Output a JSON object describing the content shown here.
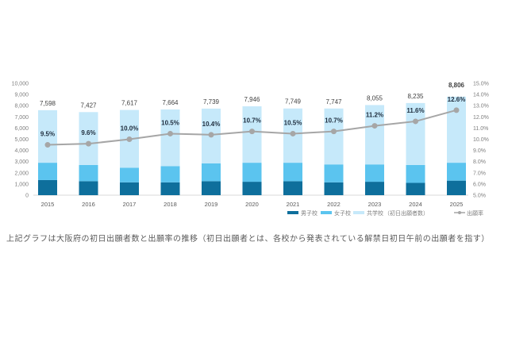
{
  "chart_data": {
    "type": "bar+line",
    "title": "",
    "categories": [
      "2015",
      "2016",
      "2017",
      "2018",
      "2019",
      "2020",
      "2021",
      "2022",
      "2023",
      "2024",
      "2025"
    ],
    "series": [
      {
        "name": "男子校",
        "type": "stacked-bar",
        "color": "#0e6f9c",
        "values": [
          1350,
          1250,
          1150,
          1150,
          1250,
          1200,
          1250,
          1150,
          1200,
          1100,
          1300
        ]
      },
      {
        "name": "女子校",
        "type": "stacked-bar",
        "color": "#5bc4ef",
        "values": [
          1550,
          1450,
          1300,
          1450,
          1600,
          1700,
          1650,
          1600,
          1550,
          1600,
          1600
        ]
      },
      {
        "name": "共学校",
        "type": "stacked-bar",
        "color": "#c6e9fa",
        "values": [
          4698,
          4727,
          5167,
          5064,
          4889,
          5046,
          4849,
          4997,
          5305,
          5535,
          5906
        ]
      },
      {
        "name": "出願率",
        "type": "line",
        "axis": "right",
        "color": "#a6a6a6",
        "values": [
          9.5,
          9.6,
          10.0,
          10.5,
          10.4,
          10.7,
          10.5,
          10.7,
          11.2,
          11.6,
          12.6
        ]
      }
    ],
    "totals": [
      7598,
      7427,
      7617,
      7664,
      7739,
      7946,
      7749,
      7747,
      8055,
      8235,
      8806
    ],
    "total_labels": [
      "7,598",
      "7,427",
      "7,617",
      "7,664",
      "7,739",
      "7,946",
      "7,749",
      "7,747",
      "8,055",
      "8,235",
      "8,806"
    ],
    "rate_labels": [
      "9.5%",
      "9.6%",
      "10.0%",
      "10.5%",
      "10.4%",
      "10.7%",
      "10.5%",
      "10.7%",
      "11.2%",
      "11.6%",
      "12.6%"
    ],
    "ylabel": "",
    "xlabel": "",
    "ylim": [
      0,
      10000
    ],
    "y_ticks": [
      "0",
      "1,000",
      "2,000",
      "3,000",
      "4,000",
      "5,000",
      "6,000",
      "7,000",
      "8,000",
      "9,000",
      "10,000"
    ],
    "y2lim": [
      5.0,
      15.0
    ],
    "y2_ticks": [
      "5.0%",
      "6.0%",
      "7.0%",
      "8.0%",
      "9.0%",
      "10.0%",
      "11.0%",
      "12.0%",
      "13.0%",
      "14.0%",
      "15.0%"
    ],
    "legend": [
      "男子校",
      "女子校",
      "共学校",
      "（初日出願者数）",
      "出願率"
    ],
    "legend_position": "bottom-right",
    "grid": false
  },
  "caption": "上記グラフは大阪府の初日出願者数と出願率の推移（初日出願者とは、各校から発表されている解禁日初日午前の出願者を指す）"
}
